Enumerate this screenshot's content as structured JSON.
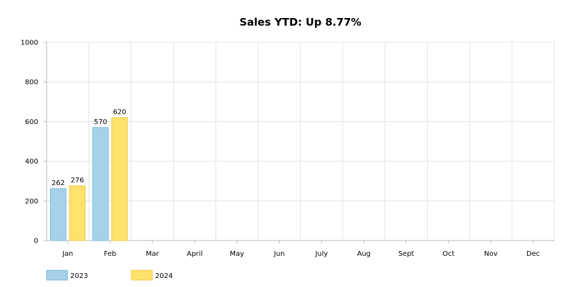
{
  "chart_data": {
    "type": "bar",
    "title": "Sales YTD: Up 8.77%",
    "categories": [
      "Jan",
      "Feb",
      "Mar",
      "April",
      "May",
      "Jun",
      "July",
      "Aug",
      "Sept",
      "Oct",
      "Nov",
      "Dec"
    ],
    "series": [
      {
        "name": "2023",
        "color": "#a6d1ea",
        "stroke": "#7fb7d7",
        "values": [
          262,
          570,
          null,
          null,
          null,
          null,
          null,
          null,
          null,
          null,
          null,
          null
        ]
      },
      {
        "name": "2024",
        "color": "#ffe16e",
        "stroke": "#f0cb46",
        "values": [
          276,
          620,
          null,
          null,
          null,
          null,
          null,
          null,
          null,
          null,
          null,
          null
        ]
      }
    ],
    "ylim": [
      0,
      1000
    ],
    "yticks": [
      0,
      200,
      400,
      600,
      800,
      1000
    ],
    "xlabel": "",
    "ylabel": "",
    "grid": true,
    "legend": "bottom-left"
  }
}
